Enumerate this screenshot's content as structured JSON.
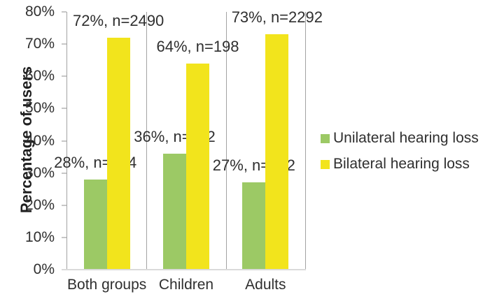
{
  "chart_data": {
    "type": "bar",
    "title": "",
    "xlabel": "",
    "ylabel": "Percentage of users",
    "categories": [
      "Both groups",
      "Children",
      "Adults"
    ],
    "series": [
      {
        "name": "Unilateral hearing loss",
        "color": "#9cc965",
        "values": [
          28,
          36,
          27
        ],
        "point_labels": [
          "28%, n=974",
          "36%, n=112",
          "27%, n=862"
        ]
      },
      {
        "name": "Bilateral hearing loss",
        "color": "#f2e41c",
        "values": [
          72,
          64,
          73
        ],
        "point_labels": [
          "72%, n=2490",
          "64%, n=198",
          "73%, n=2292"
        ]
      }
    ],
    "ylim": [
      0,
      80
    ],
    "ytick_step": 10,
    "ytick_labels": [
      "0%",
      "10%",
      "20%",
      "30%",
      "40%",
      "50%",
      "60%",
      "70%",
      "80%"
    ],
    "grid": "vertical-category-separators",
    "legend_position": "right"
  },
  "colors": {
    "unilateral": "#9cc965",
    "bilateral": "#f2e41c",
    "axis_line": "#a3a3a3",
    "baseline": "#dadada",
    "tick_mark": "#c7c7c7",
    "text": "#2f2f2f"
  }
}
